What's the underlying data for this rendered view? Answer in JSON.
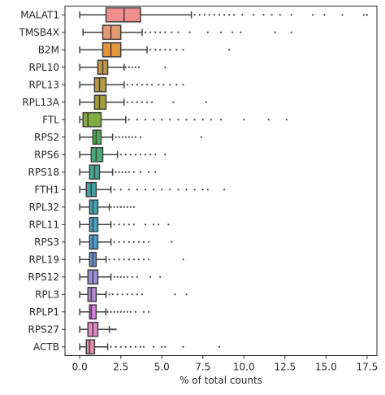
{
  "chart_data": {
    "type": "box",
    "xlabel": "% of total counts",
    "ylabel": "",
    "xlim": [
      -0.9,
      18.1
    ],
    "x_ticks": [
      "0.0",
      "2.5",
      "5.0",
      "7.5",
      "10.0",
      "12.5",
      "15.0",
      "17.5"
    ],
    "x_tick_values": [
      0,
      2.5,
      5,
      7.5,
      10,
      12.5,
      15,
      17.5
    ],
    "grid": false,
    "legend": "none",
    "categories": [
      "MALAT1",
      "TMSB4X",
      "B2M",
      "RPL10",
      "RPL13",
      "RPL13A",
      "FTL",
      "RPS2",
      "RPS6",
      "RPS18",
      "FTH1",
      "RPL32",
      "RPL11",
      "RPS3",
      "RPL19",
      "RPS12",
      "RPL3",
      "RPLP1",
      "RPS27",
      "ACTB"
    ],
    "series": [
      {
        "gene": "MALAT1",
        "color": "#ee8e8d",
        "whisker_low": 0.0,
        "q1": 1.6,
        "median": 2.7,
        "q3": 3.7,
        "whisker_high": 6.8,
        "outliers": [
          7.0,
          7.3,
          7.6,
          7.9,
          8.2,
          8.5,
          8.8,
          9.1,
          9.4,
          9.9,
          10.6,
          11.2,
          11.7,
          12.2,
          12.9,
          14.2,
          14.9,
          16.0,
          17.3,
          17.5
        ]
      },
      {
        "gene": "TMSB4X",
        "color": "#e39971",
        "whisker_low": 0.2,
        "q1": 1.4,
        "median": 1.9,
        "q3": 2.5,
        "whisker_high": 3.8,
        "outliers": [
          4.0,
          4.3,
          4.6,
          4.9,
          5.2,
          5.6,
          6.0,
          6.7,
          7.8,
          8.6,
          9.3,
          9.8,
          11.9,
          12.9
        ]
      },
      {
        "gene": "B2M",
        "color": "#e2963d",
        "whisker_low": 0.0,
        "q1": 1.4,
        "median": 1.9,
        "q3": 2.5,
        "whisker_high": 4.1,
        "outliers": [
          4.3,
          4.6,
          4.9,
          5.2,
          5.5,
          5.9,
          6.3,
          9.1
        ]
      },
      {
        "gene": "RPL10",
        "color": "#c6964a",
        "whisker_low": 0.0,
        "q1": 1.1,
        "median": 1.4,
        "q3": 1.7,
        "whisker_high": 2.7,
        "outliers": [
          2.8,
          3.0,
          3.2,
          3.4,
          3.6,
          5.2
        ]
      },
      {
        "gene": "RPL13",
        "color": "#b59a47",
        "whisker_low": 0.0,
        "q1": 0.9,
        "median": 1.2,
        "q3": 1.6,
        "whisker_high": 2.7,
        "outliers": [
          2.9,
          3.2,
          3.5,
          3.8,
          4.1,
          4.4,
          4.8,
          5.1,
          5.5,
          5.9,
          6.3
        ]
      },
      {
        "gene": "RPL13A",
        "color": "#a49d3c",
        "whisker_low": 0.0,
        "q1": 0.9,
        "median": 1.2,
        "q3": 1.6,
        "whisker_high": 2.7,
        "outliers": [
          2.9,
          3.2,
          3.5,
          3.8,
          4.1,
          4.4,
          5.7,
          7.7
        ]
      },
      {
        "gene": "FTL",
        "color": "#82ab40",
        "whisker_low": 0.0,
        "q1": 0.2,
        "median": 0.5,
        "q3": 1.3,
        "whisker_high": 2.8,
        "outliers": [
          3.0,
          3.5,
          4.0,
          4.5,
          5.0,
          5.5,
          6.0,
          6.5,
          7.0,
          7.5,
          8.0,
          8.6,
          10.0,
          11.5,
          12.6
        ]
      },
      {
        "gene": "RPS2",
        "color": "#4fad4f",
        "whisker_low": 0.0,
        "q1": 0.8,
        "median": 1.0,
        "q3": 1.3,
        "whisker_high": 2.0,
        "outliers": [
          2.2,
          2.4,
          2.6,
          2.8,
          3.0,
          3.2,
          3.4,
          3.7,
          7.4
        ]
      },
      {
        "gene": "RPS6",
        "color": "#4aab79",
        "whisker_low": 0.0,
        "q1": 0.7,
        "median": 1.0,
        "q3": 1.4,
        "whisker_high": 2.3,
        "outliers": [
          2.5,
          2.8,
          3.1,
          3.4,
          3.7,
          4.0,
          4.3,
          4.6,
          5.2
        ]
      },
      {
        "gene": "RPS18",
        "color": "#43a898",
        "whisker_low": 0.0,
        "q1": 0.6,
        "median": 0.9,
        "q3": 1.2,
        "whisker_high": 2.0,
        "outliers": [
          2.2,
          2.4,
          2.6,
          2.8,
          3.0,
          3.3,
          3.7,
          4.2,
          4.6
        ]
      },
      {
        "gene": "FTH1",
        "color": "#3fa5a6",
        "whisker_low": 0.0,
        "q1": 0.4,
        "median": 0.7,
        "q3": 1.0,
        "whisker_high": 1.9,
        "outliers": [
          2.1,
          2.5,
          3.0,
          3.5,
          4.0,
          4.5,
          5.0,
          5.5,
          6.0,
          6.5,
          7.0,
          7.5,
          7.8,
          8.8
        ]
      },
      {
        "gene": "RPL32",
        "color": "#3ea5b6",
        "whisker_low": 0.0,
        "q1": 0.6,
        "median": 0.8,
        "q3": 1.1,
        "whisker_high": 1.8,
        "outliers": [
          1.9,
          2.1,
          2.3,
          2.5,
          2.7,
          2.9,
          3.1,
          3.3
        ]
      },
      {
        "gene": "RPL11",
        "color": "#41a2c4",
        "whisker_low": 0.0,
        "q1": 0.6,
        "median": 0.8,
        "q3": 1.1,
        "whisker_high": 1.9,
        "outliers": [
          2.1,
          2.4,
          2.7,
          3.0,
          3.3,
          4.0,
          4.5,
          4.8,
          5.4
        ]
      },
      {
        "gene": "RPS3",
        "color": "#4b9ed3",
        "whisker_low": 0.0,
        "q1": 0.6,
        "median": 0.8,
        "q3": 1.1,
        "whisker_high": 1.9,
        "outliers": [
          2.1,
          2.4,
          2.7,
          3.0,
          3.3,
          3.6,
          3.9,
          4.2,
          5.6
        ]
      },
      {
        "gene": "RPL19",
        "color": "#6a95d5",
        "whisker_low": 0.0,
        "q1": 0.6,
        "median": 0.8,
        "q3": 1.0,
        "whisker_high": 1.6,
        "outliers": [
          1.8,
          2.1,
          2.4,
          2.7,
          3.0,
          3.3,
          3.6,
          3.9,
          4.2,
          6.3
        ]
      },
      {
        "gene": "RPS12",
        "color": "#9a8edf",
        "whisker_low": 0.0,
        "q1": 0.5,
        "median": 0.8,
        "q3": 1.1,
        "whisker_high": 1.9,
        "outliers": [
          2.1,
          2.3,
          2.5,
          2.7,
          2.9,
          3.2,
          3.5,
          4.3,
          4.9
        ]
      },
      {
        "gene": "RPL3",
        "color": "#b888de",
        "whisker_low": 0.0,
        "q1": 0.5,
        "median": 0.7,
        "q3": 1.0,
        "whisker_high": 1.6,
        "outliers": [
          1.8,
          2.0,
          2.3,
          2.6,
          2.9,
          3.2,
          3.5,
          3.8,
          5.8,
          6.5
        ]
      },
      {
        "gene": "RPLP1",
        "color": "#d581d5",
        "whisker_low": 0.0,
        "q1": 0.6,
        "median": 0.7,
        "q3": 1.0,
        "whisker_high": 1.6,
        "outliers": [
          1.7,
          1.9,
          2.1,
          2.3,
          2.5,
          2.7,
          2.9,
          3.1,
          3.4,
          3.9,
          4.2
        ]
      },
      {
        "gene": "RPS27",
        "color": "#e488c4",
        "whisker_low": 0.0,
        "q1": 0.5,
        "median": 0.8,
        "q3": 1.1,
        "whisker_high": 1.8,
        "outliers": [
          1.9,
          2.0,
          2.1,
          2.2
        ]
      },
      {
        "gene": "ACTB",
        "color": "#e58ca8",
        "whisker_low": 0.0,
        "q1": 0.4,
        "median": 0.6,
        "q3": 0.9,
        "whisker_high": 1.7,
        "outliers": [
          1.9,
          2.2,
          2.5,
          2.8,
          3.1,
          3.4,
          3.7,
          3.9,
          4.5,
          5.0,
          5.2,
          6.3,
          8.5
        ]
      }
    ]
  }
}
